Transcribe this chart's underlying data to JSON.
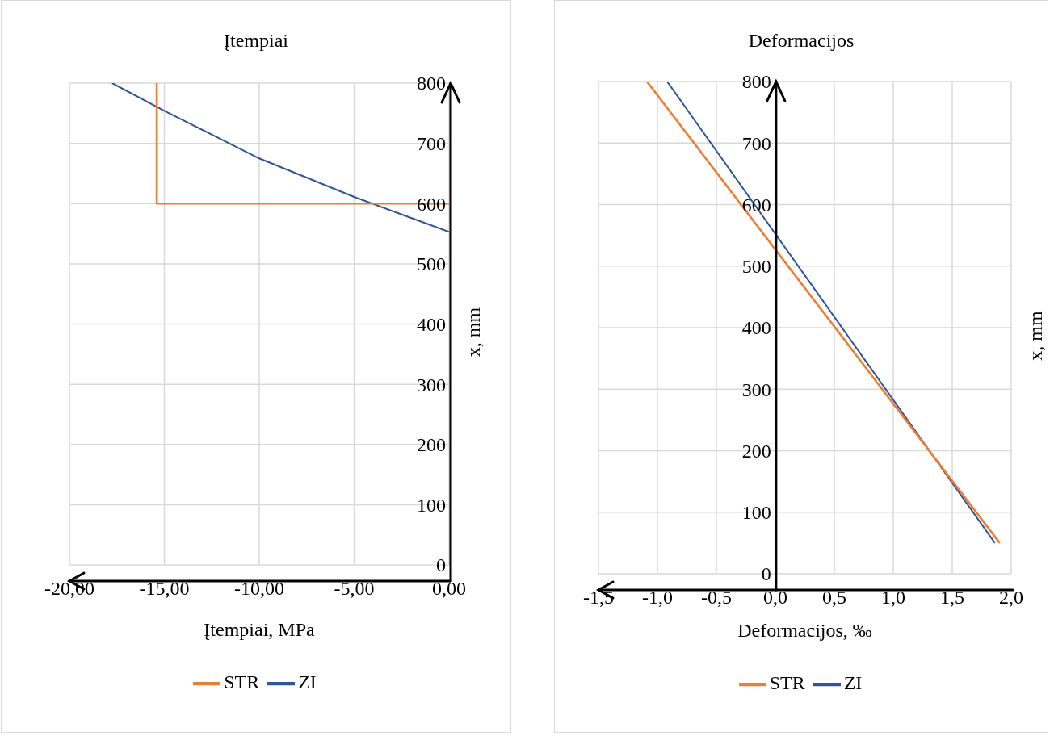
{
  "chart_data": [
    {
      "type": "line",
      "title": "Įtempiai",
      "xlabel": "Įtempiai, MPa",
      "ylabel": "x, mm",
      "xlim": [
        -20,
        0
      ],
      "xticks": [
        {
          "value": -20,
          "label": "-20,00"
        },
        {
          "value": -15,
          "label": "-15,00"
        },
        {
          "value": -10,
          "label": "-10,00"
        },
        {
          "value": -5,
          "label": "-5,00"
        },
        {
          "value": 0,
          "label": "0,00"
        }
      ],
      "ylim": [
        0,
        800
      ],
      "yticks": [
        0,
        100,
        200,
        300,
        400,
        500,
        600,
        700,
        800
      ],
      "grid": true,
      "legend": "bottom",
      "series": [
        {
          "name": "ZI",
          "color": "#2f5597",
          "x": [
            -17.75,
            -15,
            -10,
            -5,
            0
          ],
          "values": [
            800,
            754,
            675,
            611,
            553
          ]
        },
        {
          "name": "STR",
          "color": "#ed7d31",
          "x": [
            -15.4,
            -15.4,
            0
          ],
          "values": [
            800,
            600,
            600
          ]
        }
      ]
    },
    {
      "type": "line",
      "title": "Deformacijos",
      "xlabel": "Deformacijos, ‰",
      "ylabel": "x, mm",
      "xlim": [
        -1.5,
        2
      ],
      "xticks": [
        {
          "value": -1.5,
          "label": "-1,5"
        },
        {
          "value": -1,
          "label": "-1,0"
        },
        {
          "value": -0.5,
          "label": "-0,5"
        },
        {
          "value": 0,
          "label": "0,0"
        },
        {
          "value": 0.5,
          "label": "0,5"
        },
        {
          "value": 1,
          "label": "1,0"
        },
        {
          "value": 1.5,
          "label": "1,5"
        },
        {
          "value": 2,
          "label": "2,0"
        }
      ],
      "ylim": [
        0,
        800
      ],
      "yticks": [
        0,
        100,
        200,
        300,
        400,
        500,
        600,
        700,
        800
      ],
      "grid": true,
      "legend": "bottom",
      "series": [
        {
          "name": "ZI",
          "color": "#2f5597",
          "x": [
            -0.918,
            1.862
          ],
          "values": [
            800,
            50
          ]
        },
        {
          "name": "STR",
          "color": "#ed7d31",
          "x": [
            -1.089,
            1.903
          ],
          "values": [
            800,
            50
          ]
        }
      ]
    }
  ]
}
